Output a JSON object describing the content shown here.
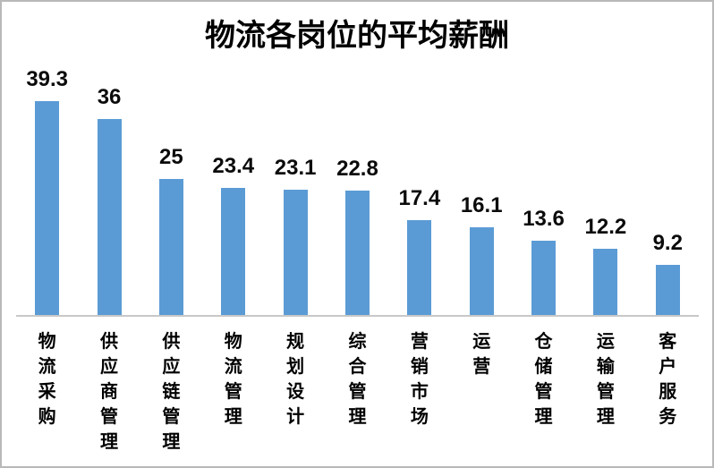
{
  "chart_data": {
    "type": "bar",
    "title": "物流各岗位的平均薪酬",
    "categories": [
      "物流采购",
      "供应商管理",
      "供应链管理",
      "物流管理",
      "规划设计",
      "综合管理",
      "营销市场",
      "运营",
      "仓储管理",
      "运输管理",
      "客户服务"
    ],
    "values": [
      39.3,
      36,
      25,
      23.4,
      23.1,
      22.8,
      17.4,
      16.1,
      13.6,
      12.2,
      9.2
    ],
    "xlabel": "",
    "ylabel": "",
    "ylim": [
      0,
      40
    ],
    "grid": false,
    "legend_position": "none",
    "data_labels": true,
    "bar_color": "#5b9bd5",
    "axis_line_color": "#c8c8c8",
    "text_color": "#000000"
  }
}
